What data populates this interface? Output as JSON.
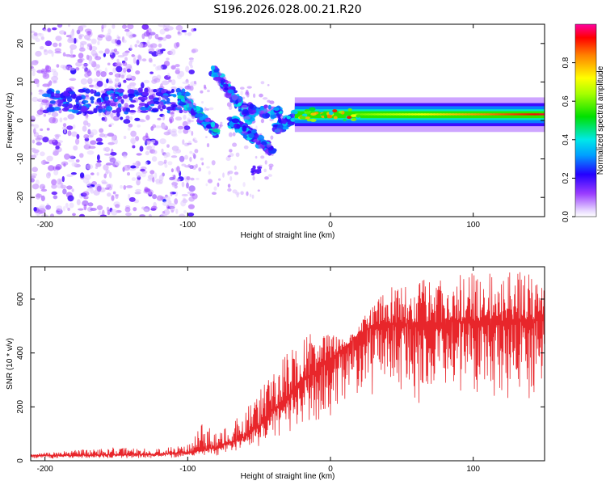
{
  "figure_title": "S196.2026.028.00.21.R20",
  "colors": {
    "snr_line": "#e8262b",
    "axis": "#000000"
  },
  "chart_data": [
    {
      "type": "heatmap",
      "name": "spectrogram",
      "xlabel": "Height of straight line (km)",
      "ylabel": "Frequency (Hz)",
      "xlim": [
        -210,
        150
      ],
      "ylim": [
        -25,
        25
      ],
      "xticks": [
        -200,
        -100,
        0,
        100
      ],
      "yticks": [
        -20,
        -10,
        0,
        10,
        20
      ],
      "xtick_labels": [
        "-200",
        "-100",
        "0",
        "100"
      ],
      "ytick_labels": [
        "-20",
        "-10",
        "0",
        "10",
        "20"
      ],
      "colorbar": {
        "label": "Normalized spectral amplitude",
        "range": [
          0,
          1
        ],
        "ticks": [
          0.0,
          0.2,
          0.4,
          0.6,
          0.8
        ],
        "tick_labels": [
          "0.0",
          "0.2",
          "0.4",
          "0.6",
          "0.8"
        ]
      },
      "features": [
        {
          "name": "noisy scatter",
          "x_range": [
            -210,
            -100
          ],
          "freq_range": [
            -25,
            25
          ],
          "amplitude": 0.1
        },
        {
          "name": "band near 5 Hz",
          "x_range": [
            -200,
            -100
          ],
          "freq_center": 5,
          "amplitude": 0.25
        },
        {
          "name": "descending branch",
          "x": [
            -100,
            -85
          ],
          "freq": [
            5,
            -3
          ],
          "amplitude": 0.35
        },
        {
          "name": "upper descending branch",
          "x": [
            -80,
            -40
          ],
          "freq": [
            13,
            -7
          ],
          "amplitude": 0.35
        },
        {
          "name": "carrier tone",
          "x_range": [
            -25,
            150
          ],
          "freq_center": 1.5,
          "amplitude": 0.9
        }
      ]
    },
    {
      "type": "line",
      "name": "snr",
      "xlabel": "Height of straight line (km)",
      "ylabel": "SNR (10 * v/v)",
      "xlim": [
        -210,
        150
      ],
      "ylim": [
        0,
        720
      ],
      "xticks": [
        -200,
        -100,
        0,
        100
      ],
      "yticks": [
        0,
        200,
        400,
        600
      ],
      "xtick_labels": [
        "-200",
        "-100",
        "0",
        "100"
      ],
      "ytick_labels": [
        "0",
        "200",
        "400",
        "600"
      ],
      "series": [
        {
          "name": "SNR",
          "x": [
            -210,
            -180,
            -150,
            -120,
            -100,
            -90,
            -80,
            -70,
            -60,
            -50,
            -40,
            -30,
            -20,
            -10,
            0,
            10,
            20,
            30,
            40,
            50,
            60,
            80,
            100,
            120,
            140,
            150
          ],
          "y": [
            20,
            20,
            22,
            25,
            30,
            40,
            50,
            70,
            90,
            130,
            190,
            240,
            290,
            330,
            380,
            420,
            470,
            500,
            505,
            510,
            510,
            515,
            520,
            520,
            525,
            525
          ],
          "peak_envelope": [
            25,
            40,
            50,
            45,
            60,
            140,
            110,
            130,
            200,
            260,
            330,
            420,
            470,
            480,
            470,
            450,
            500,
            600,
            640,
            660,
            670,
            680,
            700,
            700,
            700,
            680
          ]
        }
      ]
    }
  ]
}
